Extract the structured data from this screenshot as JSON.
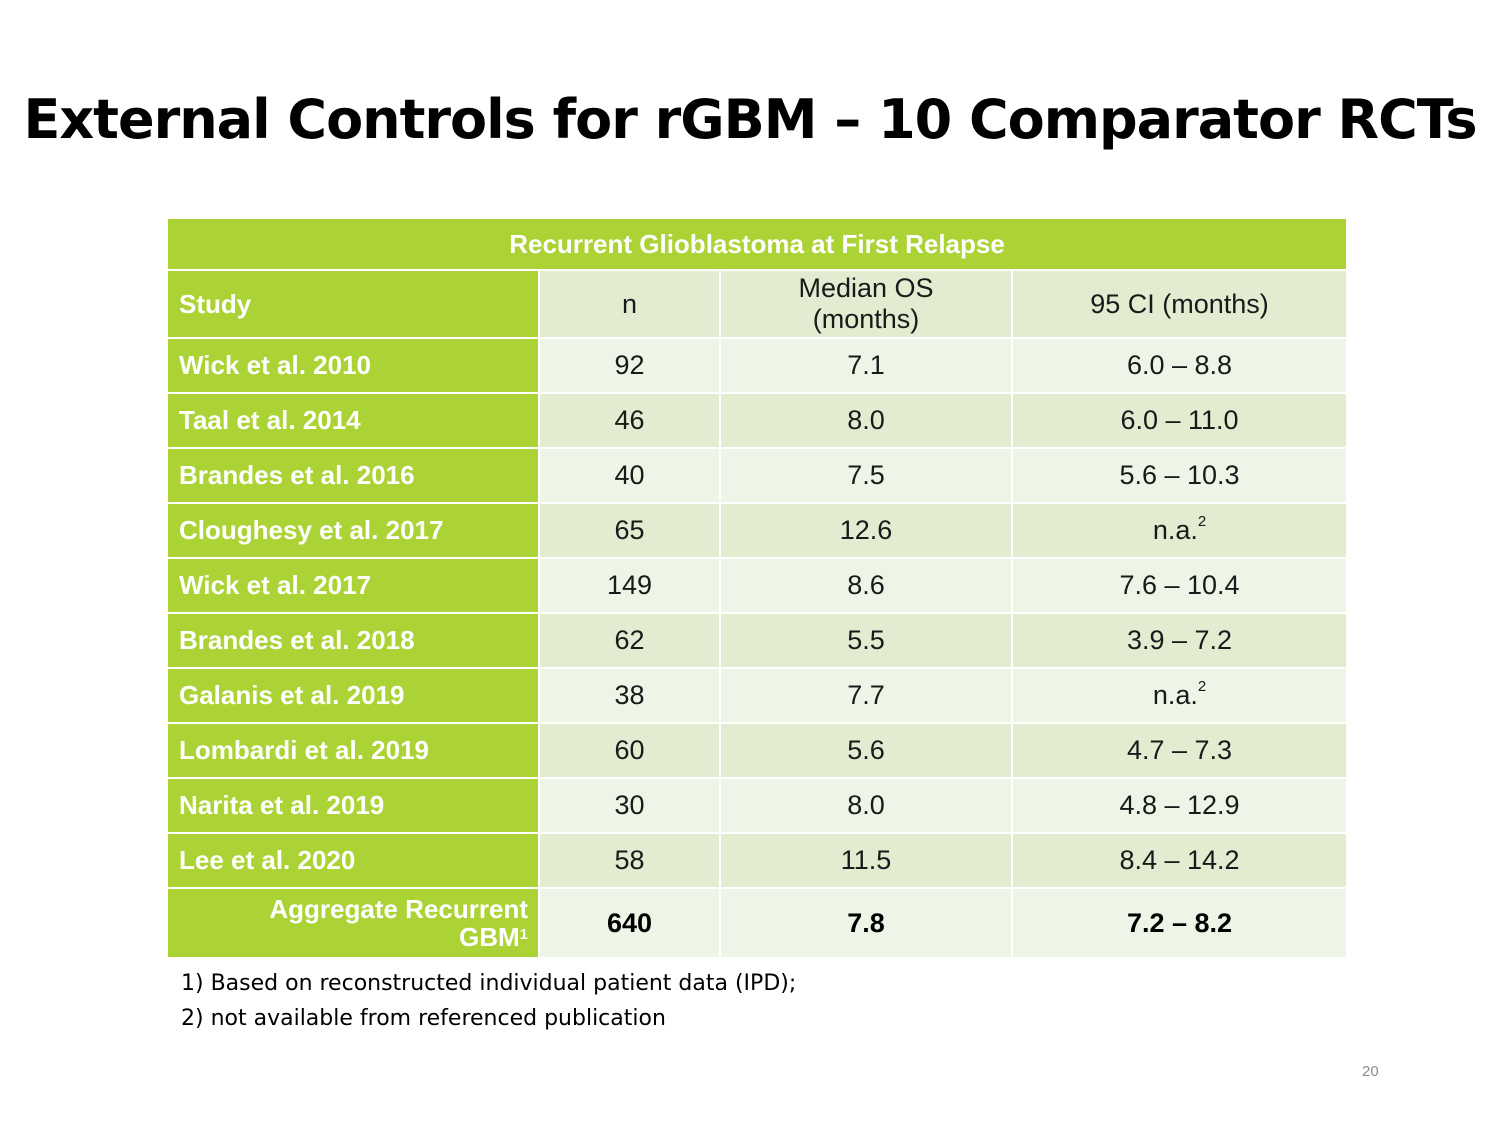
{
  "title": "External Controls for rGBM – 10 Comparator RCTs",
  "table": {
    "banner": "Recurrent Glioblastoma at First Relapse",
    "headers": {
      "study": "Study",
      "n": "n",
      "median_os": "Median OS (months)",
      "ci": "95 CI (months)"
    },
    "rows": [
      {
        "study": "Wick et al. 2010",
        "n": "92",
        "median_os": "7.1",
        "ci": "6.0 – 8.8"
      },
      {
        "study": "Taal et al. 2014",
        "n": "46",
        "median_os": "8.0",
        "ci": "6.0 – 11.0"
      },
      {
        "study": "Brandes et al. 2016",
        "n": "40",
        "median_os": "7.5",
        "ci": "5.6 – 10.3"
      },
      {
        "study": "Cloughesy et al. 2017",
        "n": "65",
        "median_os": "12.6",
        "ci": "n.a.",
        "ci_sup": "2"
      },
      {
        "study": "Wick et al. 2017",
        "n": "149",
        "median_os": "8.6",
        "ci": "7.6 – 10.4"
      },
      {
        "study": "Brandes et al. 2018",
        "n": "62",
        "median_os": "5.5",
        "ci": "3.9 – 7.2"
      },
      {
        "study": "Galanis et al. 2019",
        "n": "38",
        "median_os": "7.7",
        "ci": "n.a.",
        "ci_sup": "2"
      },
      {
        "study": "Lombardi et al. 2019",
        "n": "60",
        "median_os": "5.6",
        "ci": "4.7 – 7.3"
      },
      {
        "study": "Narita et al. 2019",
        "n": "30",
        "median_os": "8.0",
        "ci": "4.8 – 12.9"
      },
      {
        "study": "Lee et al. 2020",
        "n": "58",
        "median_os": "11.5",
        "ci": "8.4 – 14.2"
      }
    ],
    "aggregate": {
      "study_line1": "Aggregate Recurrent",
      "study_line2": "GBM",
      "study_sup": "1",
      "n": "640",
      "median_os": "7.8",
      "ci": "7.2 – 8.2"
    }
  },
  "footnotes": [
    "1) Based on reconstructed individual patient data (IPD);",
    "2) not available from referenced publication"
  ],
  "page_number": "20",
  "colors": {
    "accent_green": "#acd335",
    "cell_light": "#eef4e6",
    "cell_dark": "#e1ecd0"
  }
}
